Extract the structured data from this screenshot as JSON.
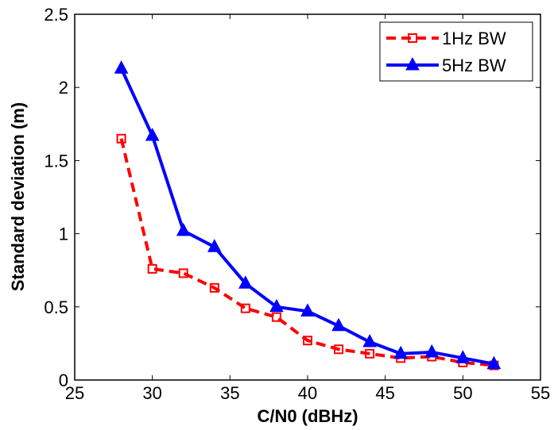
{
  "chart_data": {
    "type": "line",
    "xlabel": "C/N0 (dBHz)",
    "ylabel": "Standard deviation (m)",
    "xlim": [
      25,
      55
    ],
    "ylim": [
      0,
      2.5
    ],
    "xticks": [
      "25",
      "30",
      "35",
      "40",
      "45",
      "50",
      "55"
    ],
    "yticks": [
      "0",
      "0.5",
      "1",
      "1.5",
      "2",
      "2.5"
    ],
    "grid": false,
    "legend_position": "top-right",
    "x": [
      28,
      30,
      32,
      34,
      36,
      38,
      40,
      42,
      44,
      46,
      48,
      50,
      52
    ],
    "series": [
      {
        "name": "1Hz BW",
        "color": "#ff0000",
        "line_style": "dashed",
        "marker": "square",
        "values": [
          1.65,
          0.76,
          0.73,
          0.63,
          0.49,
          0.43,
          0.27,
          0.21,
          0.18,
          0.15,
          0.16,
          0.12,
          0.1
        ]
      },
      {
        "name": "5Hz BW",
        "color": "#0000ff",
        "line_style": "solid",
        "marker": "triangle",
        "values": [
          2.13,
          1.67,
          1.02,
          0.91,
          0.66,
          0.5,
          0.47,
          0.37,
          0.26,
          0.18,
          0.19,
          0.15,
          0.11
        ]
      }
    ]
  }
}
